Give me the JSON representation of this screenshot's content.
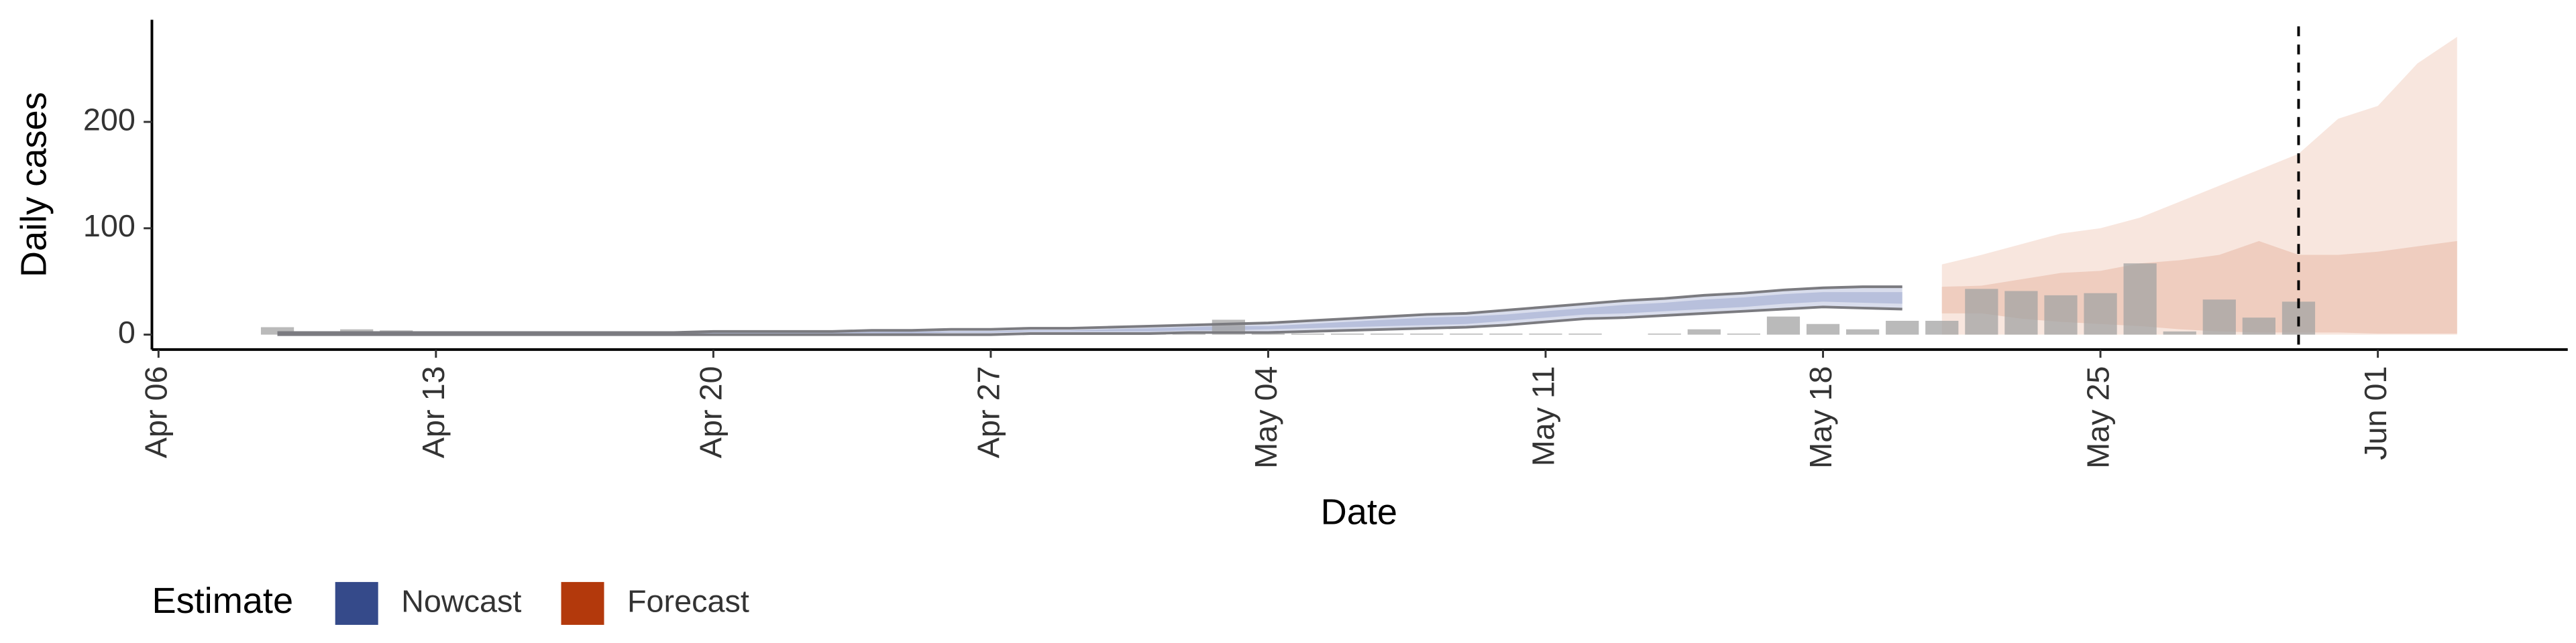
{
  "chart_data": {
    "type": "bar",
    "xlabel": "Date",
    "ylabel": "Daily cases",
    "legend_title": "Estimate",
    "categories": [
      "Apr 06",
      null,
      null,
      null,
      null,
      null,
      null,
      "Apr 13",
      null,
      null,
      null,
      null,
      null,
      null,
      "Apr 20",
      null,
      null,
      null,
      null,
      null,
      null,
      "Apr 27",
      null,
      null,
      null,
      null,
      null,
      null,
      "May 04",
      null,
      null,
      null,
      null,
      null,
      null,
      "May 11",
      null,
      null,
      null,
      null,
      null,
      null,
      "May 18",
      null,
      null,
      null,
      null,
      null,
      null,
      "May 25",
      null,
      null,
      null,
      null,
      null,
      null,
      "Jun 01",
      null,
      null,
      null,
      null
    ],
    "bars": {
      "color": "#a3a3a3",
      "values": [
        null,
        null,
        null,
        7,
        1,
        5,
        4,
        1,
        1,
        1,
        1,
        1,
        1,
        1,
        1,
        1,
        1,
        1,
        1,
        1,
        1,
        1,
        1,
        1,
        1,
        1,
        1,
        14,
        1,
        1,
        1,
        1,
        1,
        1,
        1,
        1,
        1,
        0,
        1,
        5,
        1,
        17,
        10,
        5,
        13,
        13,
        43,
        41,
        37,
        39,
        67,
        3,
        33,
        16,
        31,
        null,
        null,
        null,
        null,
        null,
        null
      ]
    },
    "series": [
      {
        "name": "Nowcast",
        "color": "#354a8a",
        "band_colors": [
          "#d9ddec",
          "#b8c0dc"
        ],
        "line_color": "#7b7b80",
        "upper90": [
          null,
          null,
          null,
          2,
          2,
          2,
          2,
          2,
          2,
          2,
          2,
          2,
          2,
          2,
          3,
          3,
          3,
          3,
          4,
          4,
          5,
          5,
          6,
          6,
          7,
          8,
          9,
          10,
          11,
          13,
          15,
          17,
          19,
          20,
          23,
          26,
          29,
          32,
          34,
          37,
          39,
          42,
          44,
          45,
          45,
          null,
          null,
          null,
          null,
          null,
          null,
          null,
          null,
          null,
          null,
          null,
          null,
          null,
          null,
          null,
          null
        ],
        "lower90": [
          null,
          null,
          null,
          0,
          0,
          0,
          0,
          0,
          0,
          0,
          0,
          0,
          0,
          0,
          0,
          0,
          0,
          0,
          0,
          0,
          0,
          0,
          1,
          1,
          1,
          1,
          2,
          2,
          2,
          3,
          4,
          5,
          6,
          7,
          9,
          12,
          15,
          16,
          18,
          20,
          22,
          24,
          26,
          25,
          24,
          null,
          null,
          null,
          null,
          null,
          null,
          null,
          null,
          null,
          null,
          null,
          null,
          null,
          null,
          null,
          null
        ],
        "upper50": [
          null,
          null,
          null,
          1.5,
          1.5,
          1.5,
          1.5,
          1.5,
          1.5,
          1.5,
          1.5,
          1.5,
          1.5,
          1.5,
          2,
          2,
          2,
          2,
          3,
          3,
          3,
          3,
          4,
          4,
          5,
          6,
          7,
          8,
          8,
          10,
          12,
          14,
          16,
          17,
          19,
          22,
          25,
          28,
          30,
          33,
          35,
          38,
          40,
          40,
          40,
          null,
          null,
          null,
          null,
          null,
          null,
          null,
          null,
          null,
          null,
          null,
          null,
          null,
          null,
          null,
          null
        ],
        "lower50": [
          null,
          null,
          null,
          0.5,
          0.5,
          0.5,
          0.5,
          0.5,
          0.5,
          0.5,
          0.5,
          0.5,
          0.5,
          0.5,
          1,
          1,
          1,
          1,
          1,
          1,
          2,
          2,
          3,
          3,
          3,
          3,
          4,
          4,
          5,
          6,
          7,
          8,
          9,
          10,
          13,
          16,
          19,
          20,
          22,
          24,
          26,
          29,
          31,
          30,
          29,
          null,
          null,
          null,
          null,
          null,
          null,
          null,
          null,
          null,
          null,
          null,
          null,
          null,
          null,
          null,
          null
        ]
      },
      {
        "name": "Forecast",
        "color": "#b3390c",
        "band_colors": [
          "#f8e6de",
          "#efcdbf"
        ],
        "upper90": [
          null,
          null,
          null,
          null,
          null,
          null,
          null,
          null,
          null,
          null,
          null,
          null,
          null,
          null,
          null,
          null,
          null,
          null,
          null,
          null,
          null,
          null,
          null,
          null,
          null,
          null,
          null,
          null,
          null,
          null,
          null,
          null,
          null,
          null,
          null,
          null,
          null,
          null,
          null,
          null,
          null,
          null,
          null,
          null,
          null,
          66,
          75,
          85,
          95,
          100,
          110,
          125,
          140,
          155,
          170,
          203,
          215,
          255,
          280,
          null,
          null
        ],
        "lower90": [
          null,
          null,
          null,
          null,
          null,
          null,
          null,
          null,
          null,
          null,
          null,
          null,
          null,
          null,
          null,
          null,
          null,
          null,
          null,
          null,
          null,
          null,
          null,
          null,
          null,
          null,
          null,
          null,
          null,
          null,
          null,
          null,
          null,
          null,
          null,
          null,
          null,
          null,
          null,
          null,
          null,
          null,
          null,
          null,
          null,
          0,
          0,
          0,
          0,
          0,
          0,
          0,
          0,
          0,
          0,
          0,
          0,
          0,
          0,
          null,
          null
        ],
        "upper50": [
          null,
          null,
          null,
          null,
          null,
          null,
          null,
          null,
          null,
          null,
          null,
          null,
          null,
          null,
          null,
          null,
          null,
          null,
          null,
          null,
          null,
          null,
          null,
          null,
          null,
          null,
          null,
          null,
          null,
          null,
          null,
          null,
          null,
          null,
          null,
          null,
          null,
          null,
          null,
          null,
          null,
          null,
          null,
          null,
          null,
          45,
          46,
          52,
          58,
          60,
          67,
          70,
          75,
          88,
          75,
          75,
          78,
          83,
          88,
          null,
          null
        ],
        "lower50": [
          null,
          null,
          null,
          null,
          null,
          null,
          null,
          null,
          null,
          null,
          null,
          null,
          null,
          null,
          null,
          null,
          null,
          null,
          null,
          null,
          null,
          null,
          null,
          null,
          null,
          null,
          null,
          null,
          null,
          null,
          null,
          null,
          null,
          null,
          null,
          null,
          null,
          null,
          null,
          null,
          null,
          null,
          null,
          null,
          null,
          20,
          20,
          15,
          12,
          10,
          8,
          5,
          3,
          2,
          2,
          2,
          1,
          1,
          1,
          null,
          null
        ]
      }
    ],
    "ylim": [
      -14,
      296
    ],
    "yticks": [
      0,
      100,
      200
    ]
  }
}
